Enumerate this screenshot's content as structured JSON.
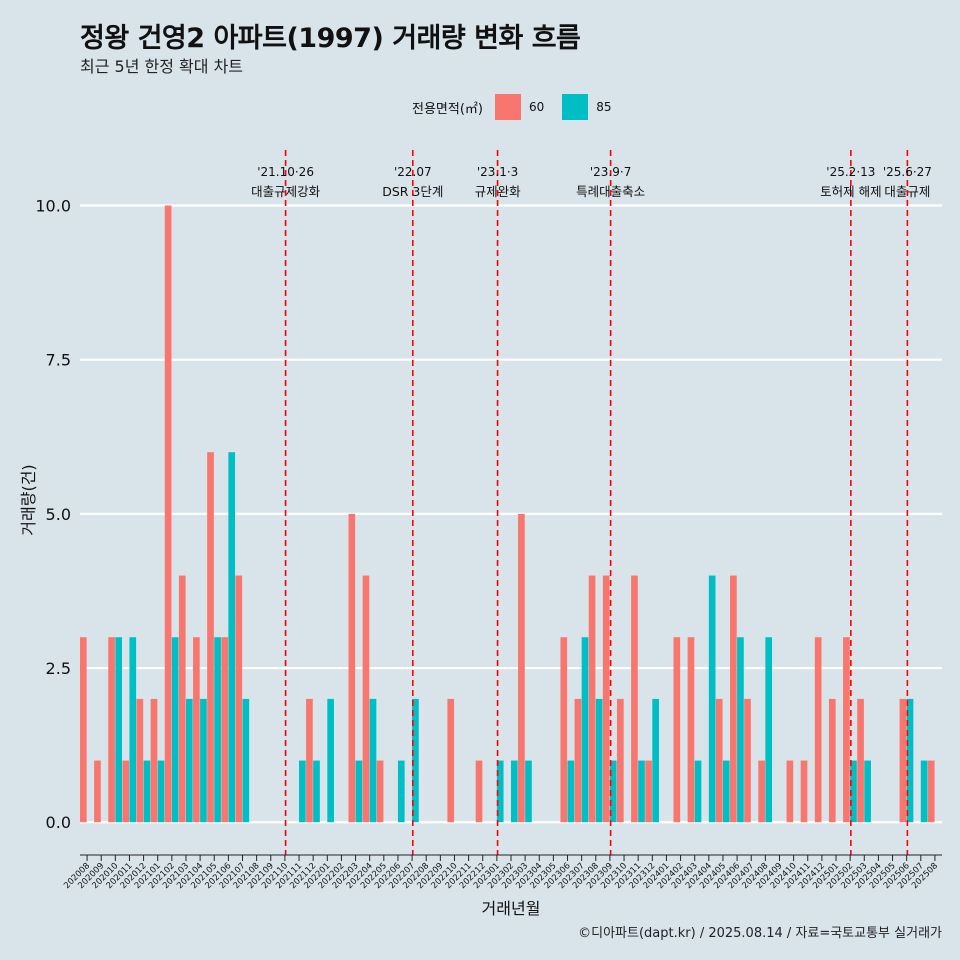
{
  "title": "정왕 건영2 아파트(1997) 거래량 변화 흐름",
  "subtitle": "최근 5년 한정 확대 차트",
  "caption": "©디아파트(dapt.kr) / 2025.08.14 / 자료=국토교통부 실거래가",
  "legend": {
    "title": "전용면적(㎡)",
    "items": [
      {
        "label": "60",
        "color": "#f8766d"
      },
      {
        "label": "85",
        "color": "#00bfc4"
      }
    ]
  },
  "chart_data": {
    "type": "bar",
    "title": "정왕 건영2 아파트(1997) 거래량 변화 흐름",
    "xlabel": "거래년월",
    "ylabel": "거래량(건)",
    "ylim": [
      -0.45,
      10.9
    ],
    "yticks": [
      "0.0",
      "2.5",
      "5.0",
      "7.5",
      "10.0"
    ],
    "ytick_values": [
      0,
      2.5,
      5,
      7.5,
      10
    ],
    "categories": [
      "202008",
      "202009",
      "202010",
      "202011",
      "202012",
      "202101",
      "202102",
      "202103",
      "202104",
      "202105",
      "202106",
      "202107",
      "202108",
      "202109",
      "202110",
      "202111",
      "202112",
      "202201",
      "202202",
      "202203",
      "202204",
      "202205",
      "202206",
      "202207",
      "202208",
      "202209",
      "202210",
      "202211",
      "202212",
      "202301",
      "202302",
      "202303",
      "202304",
      "202305",
      "202306",
      "202307",
      "202308",
      "202309",
      "202310",
      "202311",
      "202312",
      "202401",
      "202402",
      "202403",
      "202404",
      "202405",
      "202406",
      "202407",
      "202408",
      "202409",
      "202410",
      "202411",
      "202412",
      "202501",
      "202502",
      "202503",
      "202504",
      "202505",
      "202506",
      "202507",
      "202508"
    ],
    "series": [
      {
        "name": "60",
        "color": "#f8766d",
        "values": [
          3,
          1,
          3,
          1,
          2,
          2,
          10,
          4,
          3,
          6,
          3,
          4,
          0,
          0,
          0,
          0,
          2,
          0,
          0,
          5,
          4,
          1,
          0,
          0,
          0,
          0,
          2,
          0,
          1,
          0,
          0,
          5,
          0,
          0,
          3,
          2,
          4,
          4,
          2,
          4,
          1,
          0,
          3,
          3,
          0,
          2,
          4,
          2,
          1,
          0,
          1,
          1,
          3,
          2,
          3,
          2,
          0,
          0,
          2,
          0,
          1
        ]
      },
      {
        "name": "85",
        "color": "#00bfc4",
        "values": [
          0,
          0,
          3,
          3,
          1,
          1,
          3,
          2,
          2,
          3,
          6,
          2,
          0,
          0,
          0,
          1,
          1,
          2,
          0,
          1,
          2,
          0,
          1,
          2,
          0,
          0,
          0,
          0,
          0,
          1,
          1,
          1,
          0,
          0,
          1,
          3,
          2,
          1,
          0,
          1,
          2,
          0,
          0,
          1,
          4,
          1,
          3,
          0,
          3,
          0,
          0,
          0,
          0,
          0,
          1,
          1,
          0,
          0,
          2,
          1,
          0
        ]
      }
    ],
    "annotations": [
      {
        "month": "202110",
        "date": "'21.10·26",
        "label": "대출규제강화"
      },
      {
        "month": "202207",
        "date": "'22.07",
        "label": "DSR 3단계"
      },
      {
        "month": "202301",
        "date": "'23.1·3",
        "label": "규제완화"
      },
      {
        "month": "202309",
        "date": "'23.9·7",
        "label": "특례대출축소"
      },
      {
        "month": "202502",
        "date": "'25.2·13",
        "label": "토허제 해제"
      },
      {
        "month": "202506",
        "date": "'25.6·27",
        "label": "대출규제"
      }
    ]
  }
}
